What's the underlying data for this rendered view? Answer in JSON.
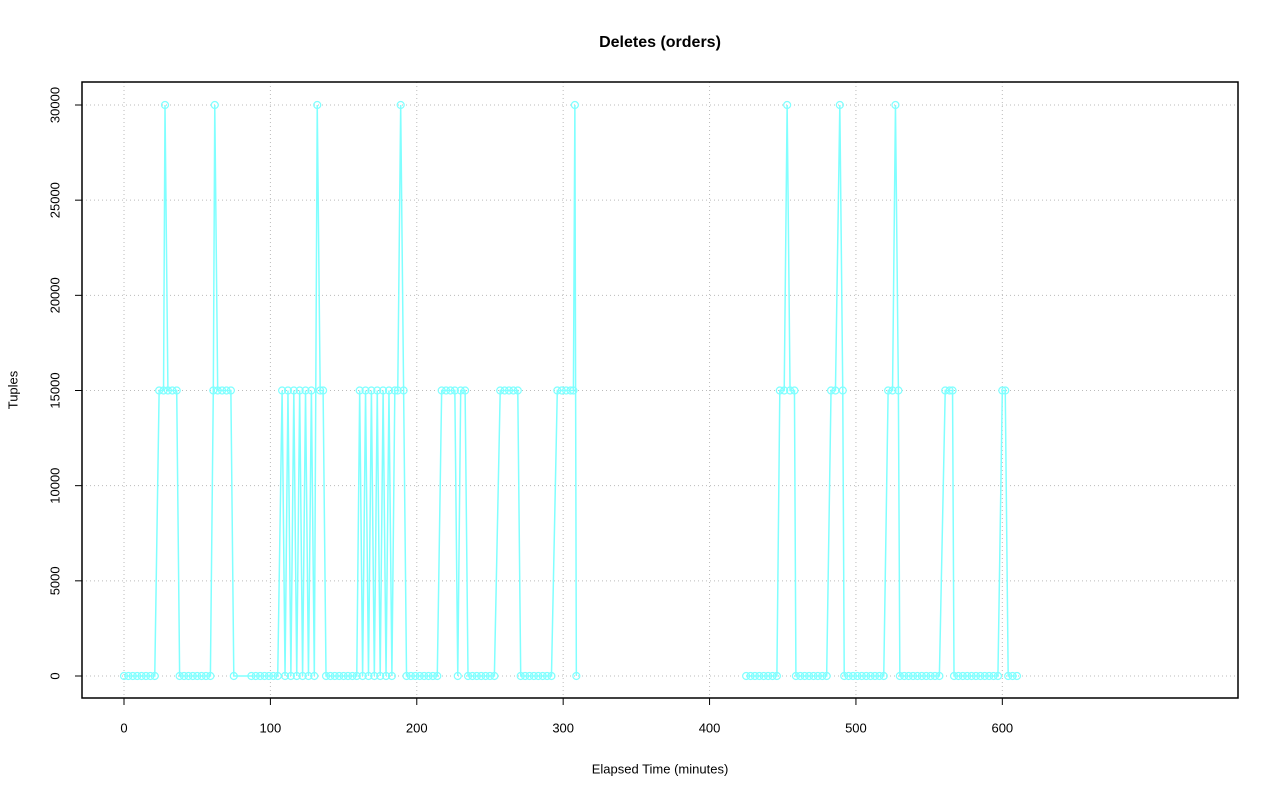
{
  "chart_data": {
    "type": "line",
    "title": "Deletes (orders)",
    "x_label": "Elapsed Time (minutes)",
    "y_label": "Tuples",
    "x": [
      0,
      3,
      6,
      9,
      12,
      15,
      18,
      21,
      24,
      27,
      28,
      30,
      33,
      36,
      38,
      41,
      44,
      47,
      50,
      53,
      56,
      59,
      61,
      62,
      64,
      67,
      70,
      73,
      75,
      87,
      90,
      93,
      96,
      99,
      102,
      105,
      108,
      110,
      112,
      114,
      116,
      118,
      120,
      122,
      124,
      126,
      128,
      130,
      132,
      134,
      136,
      138,
      141,
      144,
      147,
      150,
      153,
      156,
      159,
      161,
      163,
      165,
      167,
      169,
      171,
      173,
      175,
      177,
      179,
      181,
      183,
      185,
      187,
      189,
      191,
      193,
      196,
      199,
      202,
      205,
      208,
      211,
      214,
      217,
      220,
      223,
      226,
      228,
      230,
      233,
      235,
      238,
      241,
      244,
      247,
      250,
      253,
      257,
      260,
      263,
      266,
      269,
      271,
      274,
      277,
      280,
      283,
      286,
      289,
      292,
      296,
      299,
      302,
      305,
      307,
      308,
      309,
      360,
      425,
      428,
      431,
      434,
      437,
      440,
      443,
      446,
      448,
      451,
      453,
      455,
      458,
      459,
      462,
      465,
      468,
      471,
      474,
      477,
      480,
      483,
      486,
      489,
      491,
      492,
      495,
      498,
      501,
      504,
      507,
      510,
      513,
      516,
      519,
      522,
      525,
      527,
      529,
      530,
      533,
      536,
      539,
      542,
      545,
      548,
      551,
      554,
      557,
      561,
      564,
      566,
      567,
      570,
      573,
      576,
      579,
      582,
      585,
      588,
      591,
      594,
      597,
      600,
      602,
      604,
      607,
      610
    ],
    "series": [
      {
        "name": "orders",
        "color": "#80ffff",
        "values": [
          0,
          0,
          0,
          0,
          0,
          0,
          0,
          0,
          15000,
          15000,
          30000,
          15000,
          15000,
          15000,
          0,
          0,
          0,
          0,
          0,
          0,
          0,
          0,
          15000,
          30000,
          15000,
          15000,
          15000,
          15000,
          0,
          0,
          0,
          0,
          0,
          0,
          0,
          0,
          15000,
          0,
          15000,
          0,
          15000,
          0,
          15000,
          0,
          15000,
          0,
          15000,
          0,
          30000,
          15000,
          15000,
          0,
          0,
          0,
          0,
          0,
          0,
          0,
          0,
          15000,
          0,
          15000,
          0,
          15000,
          0,
          15000,
          0,
          15000,
          0,
          15000,
          0,
          15000,
          15000,
          30000,
          15000,
          0,
          0,
          0,
          0,
          0,
          0,
          0,
          0,
          15000,
          15000,
          15000,
          15000,
          0,
          15000,
          15000,
          0,
          0,
          0,
          0,
          0,
          0,
          0,
          15000,
          15000,
          15000,
          15000,
          15000,
          0,
          0,
          0,
          0,
          0,
          0,
          0,
          0,
          15000,
          15000,
          15000,
          15000,
          15000,
          30000,
          0,
          null,
          0,
          0,
          0,
          0,
          0,
          0,
          0,
          0,
          15000,
          15000,
          30000,
          15000,
          15000,
          0,
          0,
          0,
          0,
          0,
          0,
          0,
          0,
          15000,
          15000,
          30000,
          15000,
          0,
          0,
          0,
          0,
          0,
          0,
          0,
          0,
          0,
          0,
          15000,
          15000,
          30000,
          15000,
          0,
          0,
          0,
          0,
          0,
          0,
          0,
          0,
          0,
          0,
          15000,
          15000,
          15000,
          0,
          0,
          0,
          0,
          0,
          0,
          0,
          0,
          0,
          0,
          0,
          15000,
          15000,
          0,
          0,
          0
        ]
      }
    ],
    "xlim": [
      -28.7,
      761
    ],
    "ylim": [
      -1156,
      31208
    ],
    "xticks": [
      0,
      100,
      200,
      300,
      400,
      500,
      600
    ],
    "yticks": [
      0,
      5000,
      10000,
      15000,
      20000,
      25000,
      30000
    ],
    "grid": true
  }
}
